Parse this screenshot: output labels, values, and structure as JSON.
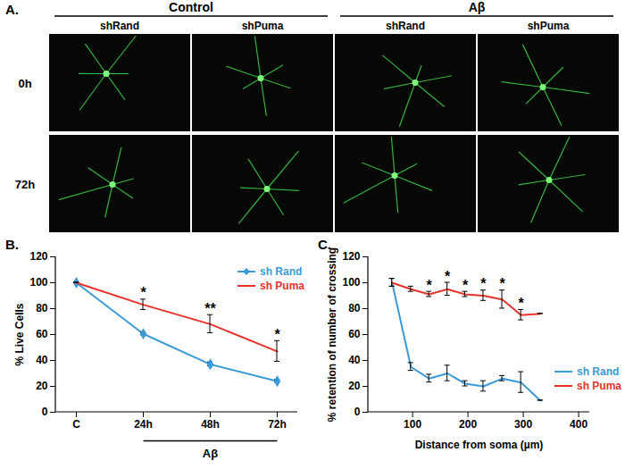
{
  "chart_data": [
    {
      "type": "line",
      "title": "B.",
      "categories": [
        "C",
        "24h",
        "48h",
        "72h"
      ],
      "series": [
        {
          "name": "sh Rand",
          "color": "#3a9ad9",
          "marker": "diamond",
          "values": [
            100,
            60.5,
            37,
            24
          ],
          "errors": [
            0,
            1,
            1.5,
            1
          ]
        },
        {
          "name": "sh Puma",
          "color": "#e8322b",
          "values": [
            100,
            83,
            68,
            47
          ],
          "errors": [
            0,
            4,
            7,
            8
          ]
        }
      ],
      "significance": [
        null,
        "*",
        "**",
        "*"
      ],
      "annotations": [
        {
          "text": "Aβ",
          "from": "24h",
          "to": "72h"
        }
      ],
      "ylabel": "% Live Cells",
      "ylim": [
        0,
        120
      ],
      "yticks": [
        0,
        20,
        40,
        60,
        80,
        100,
        120
      ],
      "legend": "top-right"
    },
    {
      "type": "line",
      "title": "C.",
      "x": [
        63,
        97,
        130,
        163,
        195,
        228,
        262,
        296,
        331
      ],
      "series": [
        {
          "name": "sh Rand",
          "color": "#3a9ad9",
          "values": [
            100,
            35,
            26,
            30,
            22,
            20,
            26,
            23,
            9
          ],
          "errors": [
            3,
            3,
            3,
            6,
            2,
            4,
            2,
            8,
            0
          ]
        },
        {
          "name": "sh Puma",
          "color": "#e8322b",
          "values": [
            100,
            95,
            91,
            95,
            91,
            90,
            87,
            75,
            76
          ],
          "errors": [
            3,
            2,
            2,
            5,
            2,
            4,
            7,
            4,
            0
          ]
        }
      ],
      "significance": [
        null,
        null,
        "*",
        "*",
        "*",
        "*",
        "*",
        "*",
        null
      ],
      "xlabel": "Distance from soma (µm)",
      "ylabel": "% retention of number of crossing",
      "xlim": [
        20,
        420
      ],
      "xticks": [
        100,
        200,
        300,
        400
      ],
      "ylim": [
        0,
        120
      ],
      "yticks": [
        0,
        20,
        40,
        60,
        80,
        100,
        120
      ],
      "legend": "bottom-right"
    }
  ],
  "panel_a": {
    "title": "A.",
    "groups": [
      {
        "name": "Control",
        "columns": [
          "shRand",
          "shPuma"
        ]
      },
      {
        "name": "Aβ",
        "columns": [
          "shRand",
          "shPuma"
        ]
      }
    ],
    "rows": [
      "0h",
      "72h"
    ]
  }
}
